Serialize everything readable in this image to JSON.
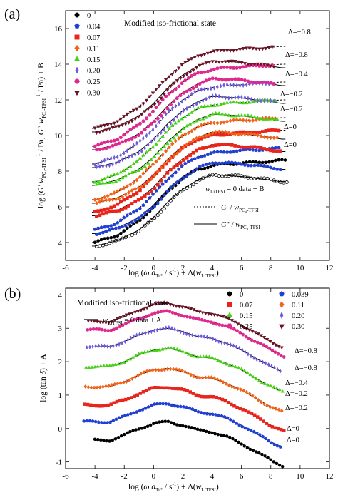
{
  "chart_data": [
    {
      "type": "scatter",
      "panel_label": "(a)",
      "annotation": "Modified iso-frictional state",
      "xlabel": "log (ω a_Tr* / s⁻¹) + Δ(w_LiTFSI)",
      "ylabel": "log (G′ w_PC4-TFSI⁻¹ / Pa,  G″ w_PC4-TFSI⁻¹ / Pa) + B",
      "xlim": [
        -6,
        12
      ],
      "ylim": [
        3,
        17
      ],
      "x_ticks": [
        "-6",
        "-4",
        "-2",
        "0",
        "2",
        "4",
        "6",
        "8",
        "10",
        "12"
      ],
      "y_ticks": [
        "4",
        "6",
        "8",
        "10",
        "12",
        "14",
        "16"
      ],
      "legend": {
        "title": "",
        "position": "top-left",
        "entries": [
          "0",
          "0.04",
          "0.07",
          "0.11",
          "0.15",
          "0.20",
          "0.25",
          "0.30"
        ]
      },
      "line_legend": {
        "position": "bottom-right",
        "header": "w_LiTFSI = 0 data  + B",
        "entries": [
          "G′ / w_PC4-TFSI",
          "G″ / w_PC4-TFSI"
        ]
      },
      "delta_labels": [
        "Δ=−0.8",
        "Δ=−0.8",
        "Δ=−0.4",
        "Δ=−0.2",
        "Δ=−0.2",
        "Δ=0",
        "Δ=0"
      ],
      "series": [
        {
          "name": "0",
          "color": "#000000",
          "marker": "circle",
          "offset": 0,
          "Gp_x": [
            -4,
            -2.5,
            -1,
            0,
            1,
            2,
            3,
            4,
            5,
            6,
            7,
            8,
            8.7
          ],
          "Gp_y": [
            4.0,
            4.4,
            5.2,
            6.0,
            6.9,
            7.6,
            8.1,
            8.3,
            8.4,
            8.45,
            8.5,
            8.55,
            8.6
          ],
          "Gpp_x": [
            -4,
            -2.5,
            -1,
            0,
            1,
            2,
            3,
            4,
            5,
            6,
            7,
            8,
            8.7
          ],
          "Gpp_y": [
            3.8,
            4.1,
            4.7,
            5.4,
            6.3,
            7.0,
            7.5,
            7.8,
            7.75,
            7.7,
            7.6,
            7.5,
            7.4
          ]
        },
        {
          "name": "0.04",
          "color": "#1f3fd6",
          "marker": "pentagon",
          "offset": 0.7
        },
        {
          "name": "0.07",
          "color": "#e8251c",
          "marker": "square",
          "offset": 1.7
        },
        {
          "name": "0.11",
          "color": "#f26419",
          "marker": "diamond",
          "offset": 2.4
        },
        {
          "name": "0.15",
          "color": "#45d416",
          "marker": "triangle",
          "offset": 3.4
        },
        {
          "name": "0.20",
          "color": "#6b5be0",
          "marker": "thin-diamond",
          "offset": 4.4
        },
        {
          "name": "0.25",
          "color": "#e0288f",
          "marker": "hexagon",
          "offset": 5.4
        },
        {
          "name": "0.30",
          "color": "#6b1324",
          "marker": "down-triangle",
          "offset": 6.4
        }
      ]
    },
    {
      "type": "scatter",
      "panel_label": "(b)",
      "annotation": "Modified iso-frictional state",
      "xlabel": "log (ω a_Tr* / s⁻¹) + Δ(w_LiTFSI)",
      "ylabel": "log (tan δ) + A",
      "xlim": [
        -6,
        12
      ],
      "ylim": [
        -1.2,
        4.2
      ],
      "x_ticks": [
        "-6",
        "-4",
        "-2",
        "0",
        "2",
        "4",
        "6",
        "8",
        "10",
        "12"
      ],
      "y_ticks": [
        "-1",
        "0",
        "1",
        "2",
        "3",
        "4"
      ],
      "legend": {
        "position": "top-right",
        "entries": [
          "0",
          "0.039",
          "0.07",
          "0.11",
          "0.15",
          "0.20",
          "0.25",
          "0.30"
        ]
      },
      "line_legend": {
        "position": "top-left",
        "entries": [
          "w_LiTFSI = 0 data + A"
        ]
      },
      "delta_labels": [
        "Δ=−0.8",
        "Δ=−0.8",
        "Δ=−0.4",
        "Δ=−0.2",
        "Δ=−0.2",
        "Δ=0",
        "Δ=0"
      ],
      "series": [
        {
          "name": "0",
          "color": "#000000",
          "marker": "circle",
          "offset": 0,
          "x": [
            -4,
            -3,
            -2,
            -1,
            0,
            1,
            2,
            3,
            4,
            5,
            6,
            7,
            8,
            9
          ],
          "y": [
            -0.35,
            -0.35,
            -0.2,
            0.0,
            0.15,
            0.2,
            0.1,
            -0.05,
            -0.1,
            -0.25,
            -0.45,
            -0.7,
            -0.95,
            -1.15
          ]
        },
        {
          "name": "0.039",
          "color": "#1f3fd6",
          "marker": "pentagon",
          "offset": 0.55
        },
        {
          "name": "0.07",
          "color": "#e8251c",
          "marker": "square",
          "offset": 1.05
        },
        {
          "name": "0.11",
          "color": "#f26419",
          "marker": "diamond",
          "offset": 1.6
        },
        {
          "name": "0.15",
          "color": "#45d416",
          "marker": "triangle",
          "offset": 2.2
        },
        {
          "name": "0.20",
          "color": "#6b5be0",
          "marker": "thin-diamond",
          "offset": 2.8
        },
        {
          "name": "0.25",
          "color": "#e0288f",
          "marker": "hexagon",
          "offset": 3.3
        },
        {
          "name": "0.30",
          "color": "#6b1324",
          "marker": "down-triangle",
          "offset": 3.55
        }
      ]
    }
  ]
}
